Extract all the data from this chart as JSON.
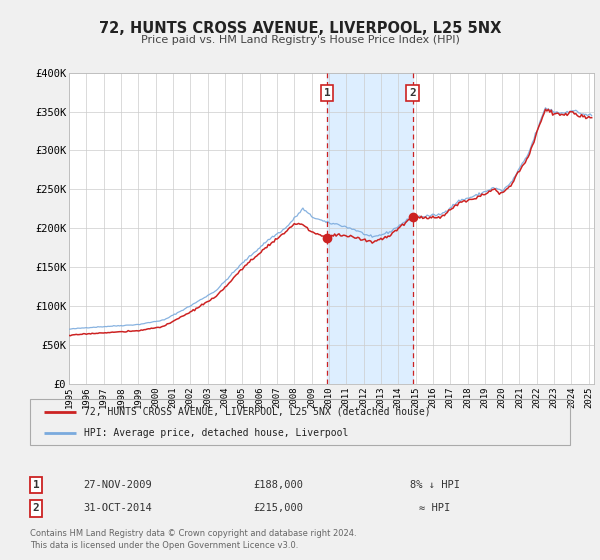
{
  "title": "72, HUNTS CROSS AVENUE, LIVERPOOL, L25 5NX",
  "subtitle": "Price paid vs. HM Land Registry's House Price Index (HPI)",
  "ylim": [
    0,
    400000
  ],
  "xlim_start": 1995.0,
  "xlim_end": 2025.3,
  "yticks": [
    0,
    50000,
    100000,
    150000,
    200000,
    250000,
    300000,
    350000,
    400000
  ],
  "ytick_labels": [
    "£0",
    "£50K",
    "£100K",
    "£150K",
    "£200K",
    "£250K",
    "£300K",
    "£350K",
    "£400K"
  ],
  "xticks": [
    1995,
    1996,
    1997,
    1998,
    1999,
    2000,
    2001,
    2002,
    2003,
    2004,
    2005,
    2006,
    2007,
    2008,
    2009,
    2010,
    2011,
    2012,
    2013,
    2014,
    2015,
    2016,
    2017,
    2018,
    2019,
    2020,
    2021,
    2022,
    2023,
    2024,
    2025
  ],
  "transaction1_date": 2009.9,
  "transaction1_value": 188000,
  "transaction1_label": "1",
  "transaction1_display": "27-NOV-2009",
  "transaction1_price": "£188,000",
  "transaction1_hpi": "8% ↓ HPI",
  "transaction2_date": 2014.83,
  "transaction2_value": 215000,
  "transaction2_label": "2",
  "transaction2_display": "31-OCT-2014",
  "transaction2_price": "£215,000",
  "transaction2_hpi": "≈ HPI",
  "hpi_color": "#7aaadd",
  "price_color": "#cc2222",
  "background_color": "#f0f0f0",
  "plot_bg_color": "#ffffff",
  "shade_color": "#ddeeff",
  "grid_color": "#cccccc",
  "legend_label_price": "72, HUNTS CROSS AVENUE, LIVERPOOL, L25 5NX (detached house)",
  "legend_label_hpi": "HPI: Average price, detached house, Liverpool",
  "footer1": "Contains HM Land Registry data © Crown copyright and database right 2024.",
  "footer2": "This data is licensed under the Open Government Licence v3.0."
}
